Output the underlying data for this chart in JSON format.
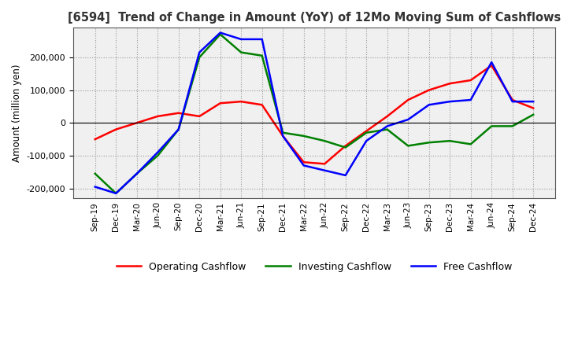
{
  "title": "[6594]  Trend of Change in Amount (YoY) of 12Mo Moving Sum of Cashflows",
  "ylabel": "Amount (million yen)",
  "x_labels": [
    "Sep-19",
    "Dec-19",
    "Mar-20",
    "Jun-20",
    "Sep-20",
    "Dec-20",
    "Mar-21",
    "Jun-21",
    "Sep-21",
    "Dec-21",
    "Mar-22",
    "Jun-22",
    "Sep-22",
    "Dec-22",
    "Mar-23",
    "Jun-23",
    "Sep-23",
    "Dec-23",
    "Mar-24",
    "Jun-24",
    "Sep-24",
    "Dec-24"
  ],
  "operating": [
    -50000,
    -20000,
    0,
    20000,
    30000,
    20000,
    60000,
    65000,
    55000,
    -40000,
    -120000,
    -125000,
    -70000,
    -25000,
    20000,
    70000,
    100000,
    120000,
    130000,
    175000,
    70000,
    45000
  ],
  "investing": [
    -155000,
    -215000,
    -155000,
    -100000,
    -20000,
    200000,
    270000,
    215000,
    205000,
    -30000,
    -40000,
    -55000,
    -75000,
    -30000,
    -20000,
    -70000,
    -60000,
    -55000,
    -65000,
    -10000,
    -10000,
    25000
  ],
  "free": [
    -195000,
    -215000,
    -155000,
    -90000,
    -20000,
    215000,
    275000,
    255000,
    255000,
    -40000,
    -130000,
    -145000,
    -160000,
    -55000,
    -10000,
    10000,
    55000,
    65000,
    70000,
    185000,
    65000,
    65000
  ],
  "operating_color": "#ff0000",
  "investing_color": "#008000",
  "free_color": "#0000ff",
  "ylim": [
    -230000,
    290000
  ],
  "yticks": [
    -200000,
    -100000,
    0,
    100000,
    200000
  ],
  "background_color": "#ffffff",
  "plot_bg_color": "#f0f0f0",
  "grid_color": "#999999"
}
